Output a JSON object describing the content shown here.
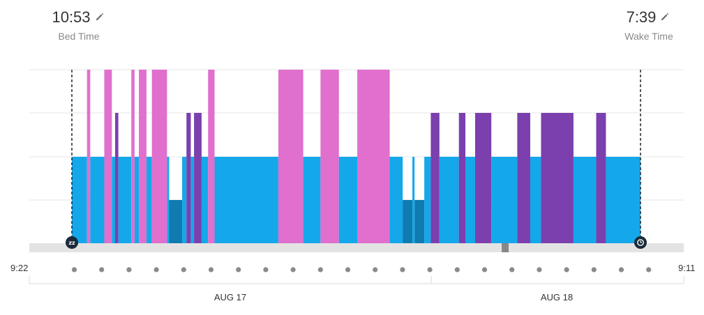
{
  "header": {
    "bed_time": {
      "value": "10:53",
      "label": "Bed Time"
    },
    "wake_time": {
      "value": "7:39",
      "label": "Wake Time"
    }
  },
  "axis": {
    "start_label": "9:22",
    "end_label": "9:11",
    "dates": [
      "AUG 17",
      "AUG 18"
    ]
  },
  "colors": {
    "awake": "#e06fce",
    "rem": "#7b3fae",
    "light": "#14a8ea",
    "light_alt": "#2a98dc",
    "deep": "#0f7bb0",
    "grid": "#e5e5e5",
    "baseline": "#e3e3e3",
    "dot": "#8a8a8a",
    "marker": "#1a2a3a"
  },
  "icons": [
    "edit-pencil-icon",
    "sleep-zz-icon",
    "alarm-clock-icon"
  ],
  "chart_data": {
    "type": "hypnogram",
    "x_unit": "clock time",
    "x_range": [
      "21:22",
      "09:11"
    ],
    "stage_levels": {
      "deep": 1,
      "light": 2,
      "rem": 3,
      "awake": 4
    },
    "bed_time": "22:53",
    "wake_time": "07:39",
    "segments": [
      {
        "stage": "light",
        "start": "22:53",
        "end": "23:07"
      },
      {
        "stage": "awake",
        "start": "23:07",
        "end": "23:10"
      },
      {
        "stage": "light",
        "start": "23:10",
        "end": "23:23"
      },
      {
        "stage": "awake",
        "start": "23:23",
        "end": "23:30"
      },
      {
        "stage": "light",
        "start": "23:30",
        "end": "23:33"
      },
      {
        "stage": "rem",
        "start": "23:33",
        "end": "23:36"
      },
      {
        "stage": "light",
        "start": "23:36",
        "end": "23:48"
      },
      {
        "stage": "awake",
        "start": "23:48",
        "end": "23:51"
      },
      {
        "stage": "light",
        "start": "23:51",
        "end": "23:55"
      },
      {
        "stage": "awake",
        "start": "23:55",
        "end": "24:02"
      },
      {
        "stage": "light",
        "start": "24:02",
        "end": "24:07"
      },
      {
        "stage": "awake",
        "start": "24:07",
        "end": "24:21"
      },
      {
        "stage": "light",
        "start": "24:21",
        "end": "24:23"
      },
      {
        "stage": "deep",
        "start": "24:23",
        "end": "24:35"
      },
      {
        "stage": "light",
        "start": "24:35",
        "end": "24:39"
      },
      {
        "stage": "rem",
        "start": "24:39",
        "end": "24:43"
      },
      {
        "stage": "light",
        "start": "24:43",
        "end": "24:46"
      },
      {
        "stage": "rem",
        "start": "24:46",
        "end": "24:53"
      },
      {
        "stage": "light",
        "start": "24:53",
        "end": "24:59"
      },
      {
        "stage": "awake",
        "start": "24:59",
        "end": "25:05"
      },
      {
        "stage": "light",
        "start": "25:05",
        "end": "26:04"
      },
      {
        "stage": "awake",
        "start": "26:04",
        "end": "26:27"
      },
      {
        "stage": "light",
        "start": "26:27",
        "end": "26:43"
      },
      {
        "stage": "awake",
        "start": "26:43",
        "end": "27:00"
      },
      {
        "stage": "light",
        "start": "27:00",
        "end": "27:17"
      },
      {
        "stage": "awake",
        "start": "27:17",
        "end": "27:47"
      },
      {
        "stage": "light",
        "start": "27:47",
        "end": "27:59"
      },
      {
        "stage": "deep",
        "start": "27:59",
        "end": "28:08"
      },
      {
        "stage": "light",
        "start": "28:08",
        "end": "28:10"
      },
      {
        "stage": "deep",
        "start": "28:10",
        "end": "28:19"
      },
      {
        "stage": "light",
        "start": "28:19",
        "end": "28:25"
      },
      {
        "stage": "rem",
        "start": "28:25",
        "end": "28:33"
      },
      {
        "stage": "light",
        "start": "28:33",
        "end": "28:51"
      },
      {
        "stage": "rem",
        "start": "28:51",
        "end": "28:57"
      },
      {
        "stage": "light",
        "start": "28:57",
        "end": "29:06"
      },
      {
        "stage": "rem",
        "start": "29:06",
        "end": "29:21"
      },
      {
        "stage": "light",
        "start": "29:21",
        "end": "29:45"
      },
      {
        "stage": "rem",
        "start": "29:45",
        "end": "29:57"
      },
      {
        "stage": "light",
        "start": "29:57",
        "end": "30:07"
      },
      {
        "stage": "rem",
        "start": "30:07",
        "end": "30:37"
      },
      {
        "stage": "light",
        "start": "30:37",
        "end": "30:58"
      },
      {
        "stage": "rem",
        "start": "30:58",
        "end": "31:07"
      },
      {
        "stage": "light",
        "start": "31:07",
        "end": "31:39"
      }
    ]
  }
}
